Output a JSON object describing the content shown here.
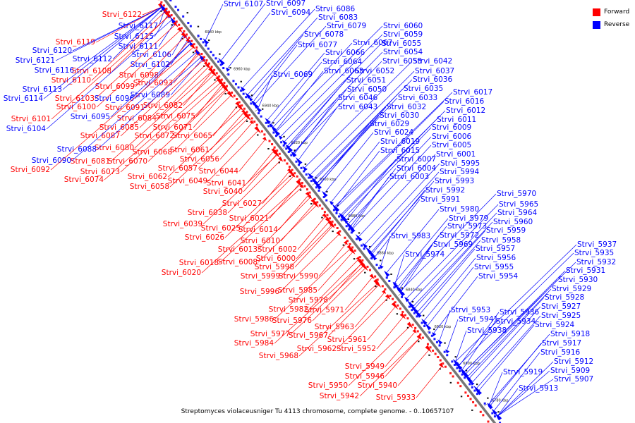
{
  "legend": {
    "forward_label": "Forward",
    "reverse_label": "Reverse",
    "forward_color": "#ff0000",
    "reverse_color": "#0000ff"
  },
  "caption": "Streptomyces violaceusniger Tu 4113 chromosome, complete genome. - 0..10657107",
  "ticks": [
    "7000 kbp",
    "6980 kbp",
    "6960 kbp",
    "6940 kbp",
    "6920 kbp",
    "6900 kbp",
    "6880 kbp",
    "6860 kbp",
    "6840 kbp",
    "6820 kbp",
    "6800 kbp",
    "6780 kbp"
  ],
  "genes": [
    {
      "id": "Strvi_6122",
      "strand": "forward"
    },
    {
      "id": "Strvi_6117",
      "strand": "reverse"
    },
    {
      "id": "Strvi_6115",
      "strand": "reverse"
    },
    {
      "id": "Strvi_6119",
      "strand": "forward"
    },
    {
      "id": "Strvi_6111",
      "strand": "reverse"
    },
    {
      "id": "Strvi_6120",
      "strand": "reverse"
    },
    {
      "id": "Strvi_6106",
      "strand": "reverse"
    },
    {
      "id": "Strvi_6112",
      "strand": "reverse"
    },
    {
      "id": "Strvi_6121",
      "strand": "reverse"
    },
    {
      "id": "Strvi_6102",
      "strand": "reverse"
    },
    {
      "id": "Strvi_6116",
      "strand": "reverse"
    },
    {
      "id": "Strvi_6108",
      "strand": "forward"
    },
    {
      "id": "Strvi_6098",
      "strand": "forward"
    },
    {
      "id": "Strvi_6110",
      "strand": "forward"
    },
    {
      "id": "Strvi_6093",
      "strand": "forward"
    },
    {
      "id": "Strvi_6099",
      "strand": "forward"
    },
    {
      "id": "Strvi_6113",
      "strand": "reverse"
    },
    {
      "id": "Strvi_6089",
      "strand": "reverse"
    },
    {
      "id": "Strvi_6114",
      "strand": "reverse"
    },
    {
      "id": "Strvi_6103",
      "strand": "forward"
    },
    {
      "id": "Strvi_6096",
      "strand": "reverse"
    },
    {
      "id": "Strvi_6100",
      "strand": "forward"
    },
    {
      "id": "Strvi_6091",
      "strand": "forward"
    },
    {
      "id": "Strvi_6082",
      "strand": "forward"
    },
    {
      "id": "Strvi_6095",
      "strand": "reverse"
    },
    {
      "id": "Strvi_6084",
      "strand": "forward"
    },
    {
      "id": "Strvi_6075",
      "strand": "forward"
    },
    {
      "id": "Strvi_6101",
      "strand": "forward"
    },
    {
      "id": "Strvi_6085",
      "strand": "forward"
    },
    {
      "id": "Strvi_6071",
      "strand": "forward"
    },
    {
      "id": "Strvi_6104",
      "strand": "reverse"
    },
    {
      "id": "Strvi_6087",
      "strand": "forward"
    },
    {
      "id": "Strvi_6072",
      "strand": "forward"
    },
    {
      "id": "Strvi_6065",
      "strand": "forward"
    },
    {
      "id": "Strvi_6080",
      "strand": "forward"
    },
    {
      "id": "Strvi_6068",
      "strand": "forward"
    },
    {
      "id": "Strvi_6061",
      "strand": "forward"
    },
    {
      "id": "Strvi_6088",
      "strand": "reverse"
    },
    {
      "id": "Strvi_6081",
      "strand": "forward"
    },
    {
      "id": "Strvi_6070",
      "strand": "forward"
    },
    {
      "id": "Strvi_6056",
      "strand": "forward"
    },
    {
      "id": "Strvi_6090",
      "strand": "reverse"
    },
    {
      "id": "Strvi_6073",
      "strand": "forward"
    },
    {
      "id": "Strvi_6057",
      "strand": "forward"
    },
    {
      "id": "Strvi_6044",
      "strand": "forward"
    },
    {
      "id": "Strvi_6092",
      "strand": "forward"
    },
    {
      "id": "Strvi_6062",
      "strand": "forward"
    },
    {
      "id": "Strvi_6049",
      "strand": "forward"
    },
    {
      "id": "Strvi_6041",
      "strand": "forward"
    },
    {
      "id": "Strvi_6074",
      "strand": "forward"
    },
    {
      "id": "Strvi_6058",
      "strand": "forward"
    },
    {
      "id": "Strvi_6040",
      "strand": "forward"
    },
    {
      "id": "Strvi_6027",
      "strand": "forward"
    },
    {
      "id": "Strvi_6038",
      "strand": "forward"
    },
    {
      "id": "Strvi_6021",
      "strand": "forward"
    },
    {
      "id": "Strvi_6039",
      "strand": "forward"
    },
    {
      "id": "Strvi_6025",
      "strand": "forward"
    },
    {
      "id": "Strvi_6014",
      "strand": "forward"
    },
    {
      "id": "Strvi_6026",
      "strand": "forward"
    },
    {
      "id": "Strvi_6010",
      "strand": "forward"
    },
    {
      "id": "Strvi_6013",
      "strand": "forward"
    },
    {
      "id": "Strvi_6002",
      "strand": "forward"
    },
    {
      "id": "Strvi_6008",
      "strand": "forward"
    },
    {
      "id": "Strvi_6000",
      "strand": "forward"
    },
    {
      "id": "Strvi_6018",
      "strand": "forward"
    },
    {
      "id": "Strvi_5998",
      "strand": "forward"
    },
    {
      "id": "Strvi_6020",
      "strand": "forward"
    },
    {
      "id": "Strvi_5999",
      "strand": "forward"
    },
    {
      "id": "Strvi_5990",
      "strand": "forward"
    },
    {
      "id": "Strvi_5996",
      "strand": "forward"
    },
    {
      "id": "Strvi_5985",
      "strand": "forward"
    },
    {
      "id": "Strvi_5978",
      "strand": "forward"
    },
    {
      "id": "Strvi_5982",
      "strand": "forward"
    },
    {
      "id": "Strvi_5971",
      "strand": "forward"
    },
    {
      "id": "Strvi_5986",
      "strand": "forward"
    },
    {
      "id": "Strvi_5976",
      "strand": "forward"
    },
    {
      "id": "Strvi_5963",
      "strand": "forward"
    },
    {
      "id": "Strvi_5977",
      "strand": "forward"
    },
    {
      "id": "Strvi_5967",
      "strand": "forward"
    },
    {
      "id": "Strvi_5961",
      "strand": "forward"
    },
    {
      "id": "Strvi_5984",
      "strand": "forward"
    },
    {
      "id": "Strvi_5962",
      "strand": "forward"
    },
    {
      "id": "Strvi_5952",
      "strand": "forward"
    },
    {
      "id": "Strvi_5968",
      "strand": "forward"
    },
    {
      "id": "Strvi_5949",
      "strand": "forward"
    },
    {
      "id": "Strvi_5946",
      "strand": "forward"
    },
    {
      "id": "Strvi_5950",
      "strand": "forward"
    },
    {
      "id": "Strvi_5940",
      "strand": "forward"
    },
    {
      "id": "Strvi_5942",
      "strand": "forward"
    },
    {
      "id": "Strvi_5933",
      "strand": "forward"
    },
    {
      "id": "Strvi_6107",
      "strand": "reverse"
    },
    {
      "id": "Strvi_6097",
      "strand": "reverse"
    },
    {
      "id": "Strvi_6094",
      "strand": "reverse"
    },
    {
      "id": "Strvi_6086",
      "strand": "reverse"
    },
    {
      "id": "Strvi_6083",
      "strand": "reverse"
    },
    {
      "id": "Strvi_6079",
      "strand": "reverse"
    },
    {
      "id": "Strvi_6078",
      "strand": "reverse"
    },
    {
      "id": "Strvi_6077",
      "strand": "reverse"
    },
    {
      "id": "Strvi_6067",
      "strand": "reverse"
    },
    {
      "id": "Strvi_6060",
      "strand": "reverse"
    },
    {
      "id": "Strvi_6059",
      "strand": "reverse"
    },
    {
      "id": "Strvi_6055",
      "strand": "reverse"
    },
    {
      "id": "Strvi_6066",
      "strand": "reverse"
    },
    {
      "id": "Strvi_6054",
      "strand": "reverse"
    },
    {
      "id": "Strvi_6064",
      "strand": "reverse"
    },
    {
      "id": "Strvi_6053",
      "strand": "reverse"
    },
    {
      "id": "Strvi_6069",
      "strand": "reverse"
    },
    {
      "id": "Strvi_6063",
      "strand": "reverse"
    },
    {
      "id": "Strvi_6052",
      "strand": "reverse"
    },
    {
      "id": "Strvi_6042",
      "strand": "reverse"
    },
    {
      "id": "Strvi_6037",
      "strand": "reverse"
    },
    {
      "id": "Strvi_6051",
      "strand": "reverse"
    },
    {
      "id": "Strvi_6036",
      "strand": "reverse"
    },
    {
      "id": "Strvi_6050",
      "strand": "reverse"
    },
    {
      "id": "Strvi_6035",
      "strand": "reverse"
    },
    {
      "id": "Strvi_6017",
      "strand": "reverse"
    },
    {
      "id": "Strvi_6046",
      "strand": "reverse"
    },
    {
      "id": "Strvi_6033",
      "strand": "reverse"
    },
    {
      "id": "Strvi_6016",
      "strand": "reverse"
    },
    {
      "id": "Strvi_6043",
      "strand": "reverse"
    },
    {
      "id": "Strvi_6032",
      "strand": "reverse"
    },
    {
      "id": "Strvi_6012",
      "strand": "reverse"
    },
    {
      "id": "Strvi_6030",
      "strand": "reverse"
    },
    {
      "id": "Strvi_6011",
      "strand": "reverse"
    },
    {
      "id": "Strvi_6029",
      "strand": "reverse"
    },
    {
      "id": "Strvi_6009",
      "strand": "reverse"
    },
    {
      "id": "Strvi_6024",
      "strand": "reverse"
    },
    {
      "id": "Strvi_6006",
      "strand": "reverse"
    },
    {
      "id": "Strvi_6019",
      "strand": "reverse"
    },
    {
      "id": "Strvi_6005",
      "strand": "reverse"
    },
    {
      "id": "Strvi_6015",
      "strand": "reverse"
    },
    {
      "id": "Strvi_6001",
      "strand": "reverse"
    },
    {
      "id": "Strvi_6007",
      "strand": "reverse"
    },
    {
      "id": "Strvi_5995",
      "strand": "reverse"
    },
    {
      "id": "Strvi_6004",
      "strand": "reverse"
    },
    {
      "id": "Strvi_5994",
      "strand": "reverse"
    },
    {
      "id": "Strvi_6003",
      "strand": "reverse"
    },
    {
      "id": "Strvi_5993",
      "strand": "reverse"
    },
    {
      "id": "Strvi_5992",
      "strand": "reverse"
    },
    {
      "id": "Strvi_5970",
      "strand": "reverse"
    },
    {
      "id": "Strvi_5991",
      "strand": "reverse"
    },
    {
      "id": "Strvi_5965",
      "strand": "reverse"
    },
    {
      "id": "Strvi_5980",
      "strand": "reverse"
    },
    {
      "id": "Strvi_5964",
      "strand": "reverse"
    },
    {
      "id": "Strvi_5979",
      "strand": "reverse"
    },
    {
      "id": "Strvi_5960",
      "strand": "reverse"
    },
    {
      "id": "Strvi_5973",
      "strand": "reverse"
    },
    {
      "id": "Strvi_5959",
      "strand": "reverse"
    },
    {
      "id": "Strvi_5983",
      "strand": "reverse"
    },
    {
      "id": "Strvi_5972",
      "strand": "reverse"
    },
    {
      "id": "Strvi_5958",
      "strand": "reverse"
    },
    {
      "id": "Strvi_5969",
      "strand": "reverse"
    },
    {
      "id": "Strvi_5957",
      "strand": "reverse"
    },
    {
      "id": "Strvi_5974",
      "strand": "reverse"
    },
    {
      "id": "Strvi_5956",
      "strand": "reverse"
    },
    {
      "id": "Strvi_5955",
      "strand": "reverse"
    },
    {
      "id": "Strvi_5954",
      "strand": "reverse"
    },
    {
      "id": "Strvi_5937",
      "strand": "reverse"
    },
    {
      "id": "Strvi_5935",
      "strand": "reverse"
    },
    {
      "id": "Strvi_5932",
      "strand": "reverse"
    },
    {
      "id": "Strvi_5931",
      "strand": "reverse"
    },
    {
      "id": "Strvi_5930",
      "strand": "reverse"
    },
    {
      "id": "Strvi_5929",
      "strand": "reverse"
    },
    {
      "id": "Strvi_5928",
      "strand": "reverse"
    },
    {
      "id": "Strvi_5927",
      "strand": "reverse"
    },
    {
      "id": "Strvi_5953",
      "strand": "reverse"
    },
    {
      "id": "Strvi_5936",
      "strand": "reverse"
    },
    {
      "id": "Strvi_5925",
      "strand": "reverse"
    },
    {
      "id": "Strvi_5941",
      "strand": "reverse"
    },
    {
      "id": "Strvi_5934",
      "strand": "reverse"
    },
    {
      "id": "Strvi_5924",
      "strand": "reverse"
    },
    {
      "id": "Strvi_5938",
      "strand": "reverse"
    },
    {
      "id": "Strvi_5918",
      "strand": "reverse"
    },
    {
      "id": "Strvi_5917",
      "strand": "reverse"
    },
    {
      "id": "Strvi_5916",
      "strand": "reverse"
    },
    {
      "id": "Strvi_5912",
      "strand": "reverse"
    },
    {
      "id": "Strvi_5919",
      "strand": "reverse"
    },
    {
      "id": "Strvi_5909",
      "strand": "reverse"
    },
    {
      "id": "Strvi_5907",
      "strand": "reverse"
    },
    {
      "id": "Strvi_5913",
      "strand": "reverse"
    }
  ]
}
